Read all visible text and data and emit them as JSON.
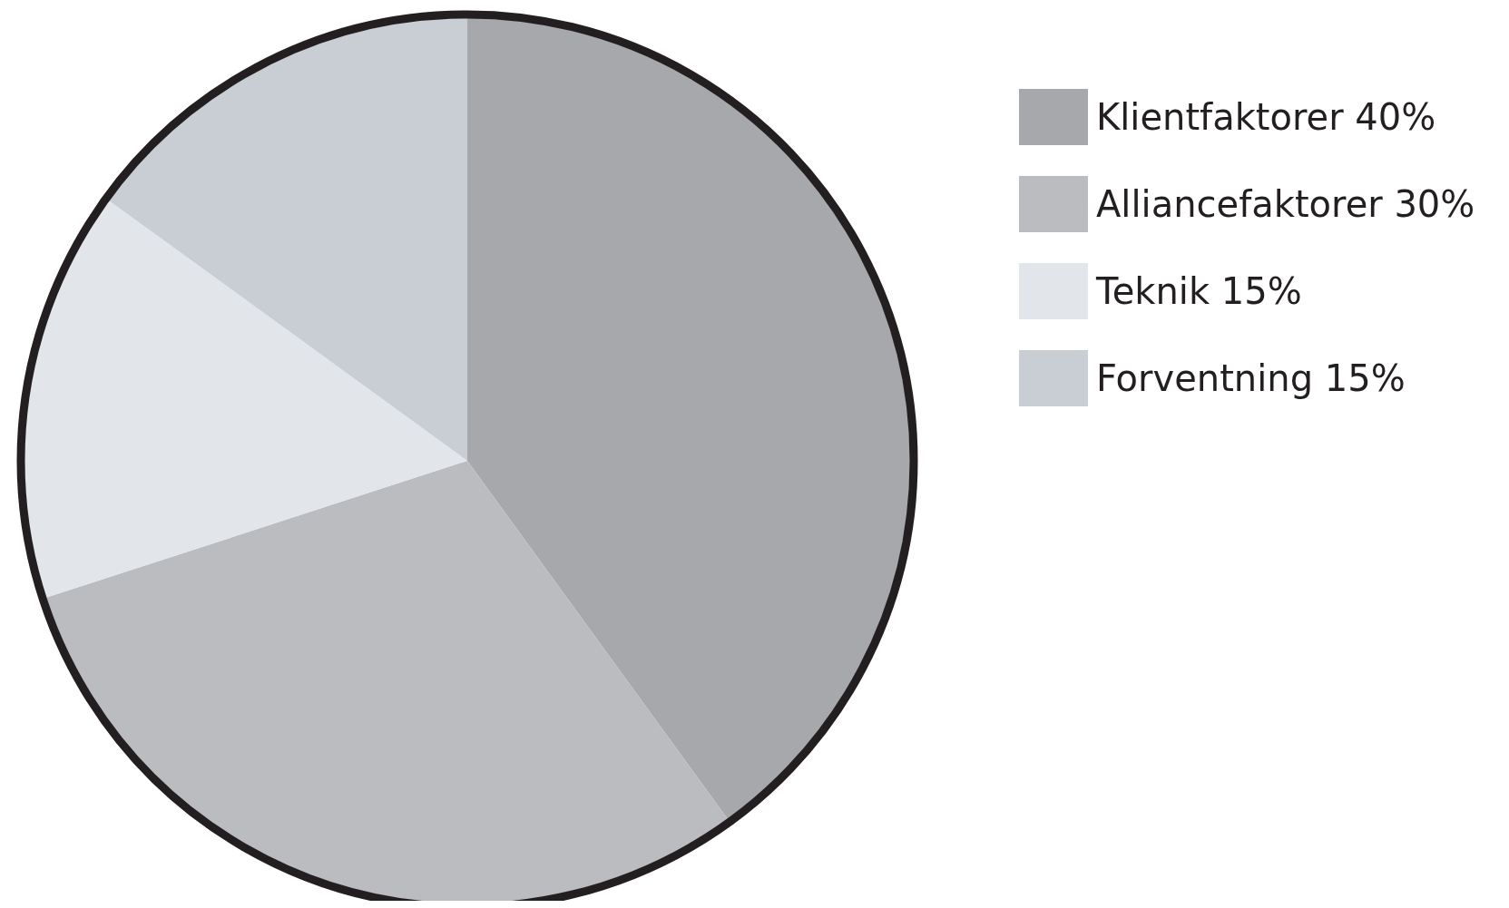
{
  "chart_data": {
    "type": "pie",
    "categories": [
      "Klientfaktorer 40%",
      "Alliancefaktorer 30%",
      "Teknik 15%",
      "Forventning 15%"
    ],
    "values": [
      40,
      30,
      15,
      15
    ],
    "colors": [
      "#a7a8ab",
      "#bbbcc0",
      "#e2e5ea",
      "#c9ced5"
    ],
    "legend": "top right"
  }
}
